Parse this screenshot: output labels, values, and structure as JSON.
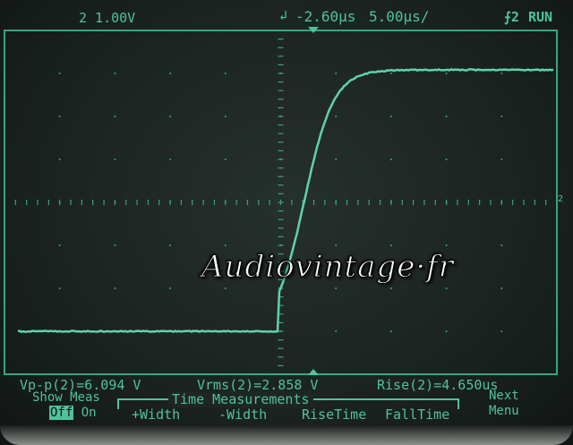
{
  "header": {
    "channel_scale": "2 1.00V",
    "trigger_delay": "-2.60µs",
    "timebase": "5.00µs/",
    "trigger_source": "⨍2",
    "run_state": "RUN"
  },
  "measurements": {
    "vpp": "Vp-p(2)=6.094 V",
    "vrms": "Vrms(2)=2.858 V",
    "rise": "Rise(2)=4.650us"
  },
  "softkeys": {
    "show_meas": "Show Meas",
    "off": "Off",
    "on": "On",
    "group_title": "Time Measurements",
    "plus_width": "+Width",
    "minus_width": "-Width",
    "rise_time": "RiseTime",
    "fall_time": "FallTime",
    "next": "Next",
    "menu": "Menu"
  },
  "watermark": "Audiovintage·fr",
  "colors": {
    "trace": "#4fc39a",
    "graticule": "#3aa57f",
    "background": "#1c2421"
  }
}
